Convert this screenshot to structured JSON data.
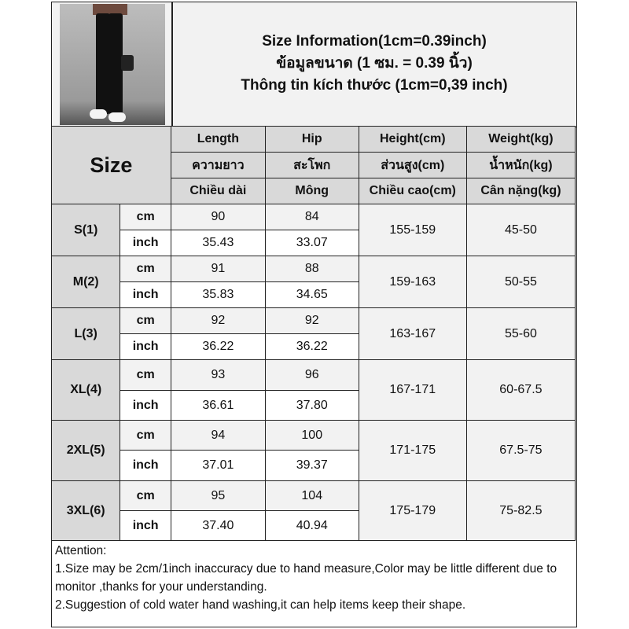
{
  "title": {
    "line1": "Size Information(1cm=0.39inch)",
    "line2": "ข้อมูลขนาด (1 ซม. = 0.39 นิ้ว)",
    "line3": "Thông tin kích thước (1cm=0,39 inch)"
  },
  "header": {
    "size": "Size",
    "columns": [
      {
        "en": "Length",
        "th": "ความยาว",
        "vi": "Chiều dài"
      },
      {
        "en": "Hip",
        "th": "สะโพก",
        "vi": "Mông"
      },
      {
        "en": "Height(cm)",
        "th": "ส่วนสูง(cm)",
        "vi": "Chiều cao(cm)"
      },
      {
        "en": "Weight(kg)",
        "th": "น้ำหนัก(kg)",
        "vi": "Cân nặng(kg)"
      }
    ]
  },
  "rows": [
    {
      "size": "S(1)",
      "cm_label": "cm",
      "inch_label": "inch",
      "length_cm": "90",
      "hip_cm": "84",
      "length_in": "35.43",
      "hip_in": "33.07",
      "height": "155-159",
      "weight": "45-50"
    },
    {
      "size": "M(2)",
      "cm_label": "cm",
      "inch_label": "inch",
      "length_cm": "91",
      "hip_cm": "88",
      "length_in": "35.83",
      "hip_in": "34.65",
      "height": "159-163",
      "weight": "50-55"
    },
    {
      "size": "L(3)",
      "cm_label": "cm",
      "inch_label": "inch",
      "length_cm": "92",
      "hip_cm": "92",
      "length_in": "36.22",
      "hip_in": "36.22",
      "height": "163-167",
      "weight": "55-60"
    },
    {
      "size": "XL(4)",
      "cm_label": "cm",
      "inch_label": "inch",
      "length_cm": "93",
      "hip_cm": "96",
      "length_in": "36.61",
      "hip_in": "37.80",
      "height": "167-171",
      "weight": "60-67.5"
    },
    {
      "size": "2XL(5)",
      "cm_label": "cm",
      "inch_label": "inch",
      "length_cm": "94",
      "hip_cm": "100",
      "length_in": "37.01",
      "hip_in": "39.37",
      "height": "171-175",
      "weight": "67.5-75"
    },
    {
      "size": "3XL(6)",
      "cm_label": "cm",
      "inch_label": "inch",
      "length_cm": "95",
      "hip_cm": "104",
      "length_in": "37.40",
      "hip_in": "40.94",
      "height": "175-179",
      "weight": "75-82.5"
    }
  ],
  "attention": {
    "heading": "Attention:",
    "note1": "1.Size may be 2cm/1inch inaccuracy due to hand measure,Color may be little different due to monitor ,thanks for your understanding.",
    "note2": "2.Suggestion of cold water hand washing,it can help items keep their shape."
  }
}
